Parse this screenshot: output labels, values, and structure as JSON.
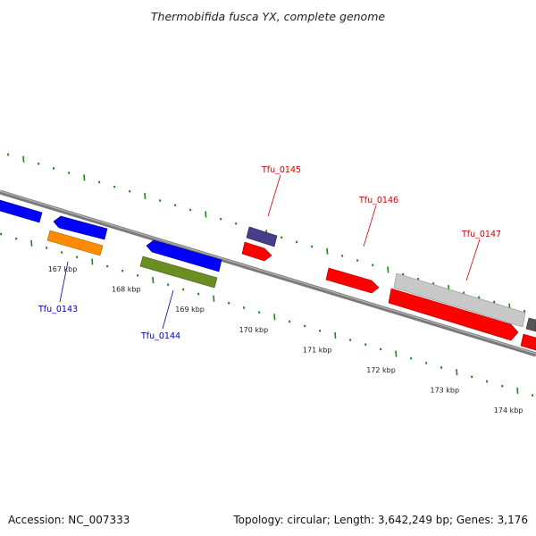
{
  "title": "Thermobifida fusca YX, complete genome",
  "footer": {
    "accession": "Accession: NC_007333",
    "summary": "Topology: circular; Length: 3,642,249 bp; Genes: 3,176"
  },
  "ruler": {
    "unit": "kbp",
    "ticks": [
      {
        "kbp": 167,
        "label": "167 kbp"
      },
      {
        "kbp": 168,
        "label": "168 kbp"
      },
      {
        "kbp": 169,
        "label": "169 kbp"
      },
      {
        "kbp": 170,
        "label": "170 kbp"
      },
      {
        "kbp": 171,
        "label": "171 kbp"
      },
      {
        "kbp": 172,
        "label": "172 kbp"
      },
      {
        "kbp": 173,
        "label": "173 kbp"
      },
      {
        "kbp": 174,
        "label": "174 kbp"
      }
    ]
  },
  "gene_labels": [
    {
      "name": "Tfu_0143",
      "strand": "reverse",
      "color": "#0000aa"
    },
    {
      "name": "Tfu_0144",
      "strand": "reverse",
      "color": "#0000aa"
    },
    {
      "name": "Tfu_0145",
      "strand": "forward",
      "color": "#cc0000"
    },
    {
      "name": "Tfu_0146",
      "strand": "forward",
      "color": "#cc0000"
    },
    {
      "name": "Tfu_0147",
      "strand": "forward",
      "color": "#cc0000"
    }
  ],
  "feature_colors": {
    "cds_forward": "#ff0000",
    "cds_reverse": "#0000ff",
    "orange_track": "#ff8c00",
    "olive_track": "#6b8e23",
    "purple_track": "#483d8b",
    "grey_track": "#c8c8c8",
    "dark_grey_track": "#555555",
    "backbone": "#7a7a7a",
    "ticks": "#1a8a1a"
  }
}
